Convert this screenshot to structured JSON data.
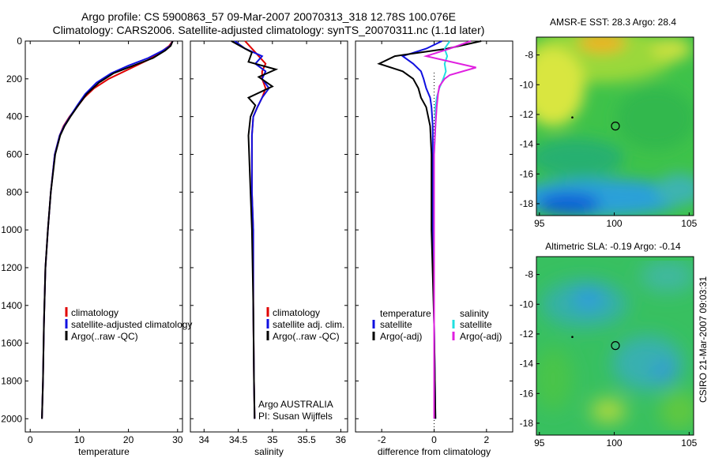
{
  "header": {
    "line1": "Argo profile: CS 5900863_57 09-Mar-2007 20070313_318 12.78S 100.076E",
    "line2": "Climatology: CARS2006. Satellite-adjusted climatology: synTS_20070311.nc (1.1d later)"
  },
  "footer_stamp": "CSIRO 21-Mar-2007 09:03:31",
  "colors": {
    "climatology": "#e00000",
    "satellite": "#1010e0",
    "argo": "#000000",
    "sal_satellite": "#20e0e0",
    "sal_argo": "#e020e0"
  },
  "chart_data": [
    {
      "id": "temperature",
      "type": "line",
      "xlabel": "temperature",
      "ylabel": "",
      "xlim": [
        -1,
        31
      ],
      "ylim": [
        2070,
        0
      ],
      "xticks": [
        0,
        10,
        20,
        30
      ],
      "yticks": [
        0,
        200,
        400,
        600,
        800,
        1000,
        1200,
        1400,
        1600,
        1800,
        2000
      ],
      "legend": [
        "climatology",
        "satellite-adjusted climatology",
        "Argo(..raw -QC)"
      ],
      "series": [
        {
          "name": "climatology",
          "color": "#e00000",
          "x": [
            29,
            28.3,
            27,
            24,
            20,
            16,
            13,
            11,
            9.5,
            8,
            6.8,
            6,
            5,
            4.2,
            3.6,
            3.1,
            2.8,
            2.6,
            2.4
          ],
          "y": [
            0,
            25,
            50,
            100,
            150,
            200,
            250,
            300,
            350,
            400,
            450,
            500,
            600,
            800,
            1000,
            1200,
            1500,
            1800,
            2000
          ]
        },
        {
          "name": "satellite-adjusted climatology",
          "color": "#1010e0",
          "x": [
            29,
            28.5,
            27,
            24,
            20,
            16.5,
            13.5,
            11.2,
            9.6,
            8.1,
            6.9,
            6,
            5,
            4.2,
            3.6,
            3.1,
            2.8,
            2.6,
            2.4
          ],
          "y": [
            0,
            25,
            50,
            90,
            130,
            170,
            220,
            280,
            340,
            400,
            450,
            500,
            600,
            800,
            1000,
            1200,
            1500,
            1800,
            2000
          ]
        },
        {
          "name": "Argo(..raw -QC)",
          "color": "#000000",
          "x": [
            29,
            28.6,
            27.5,
            25,
            21,
            17,
            14,
            11.5,
            9.8,
            8.2,
            7,
            6.1,
            5.1,
            4.2,
            3.6,
            3.1,
            2.8,
            2.6,
            2.4
          ],
          "y": [
            0,
            25,
            50,
            90,
            130,
            170,
            220,
            280,
            340,
            400,
            450,
            500,
            600,
            800,
            1000,
            1200,
            1500,
            1800,
            2000
          ]
        }
      ]
    },
    {
      "id": "salinity",
      "type": "line",
      "xlabel": "salinity",
      "ylabel": "",
      "xlim": [
        33.8,
        36.1
      ],
      "ylim": [
        2070,
        0
      ],
      "xticks": [
        34,
        34.5,
        35,
        35.5,
        36
      ],
      "legend": [
        "climatology",
        "satellite adj. clim.",
        "Argo(..raw -QC)"
      ],
      "annotations": [
        "Argo AUSTRALIA",
        "PI: Susan Wijffels"
      ],
      "series": [
        {
          "name": "climatology",
          "color": "#e00000",
          "x": [
            34.6,
            34.7,
            34.8,
            34.9,
            34.85,
            34.85,
            34.9,
            34.85,
            34.78,
            34.72,
            34.7,
            34.7,
            34.72,
            34.72,
            34.73,
            34.74
          ],
          "y": [
            0,
            40,
            80,
            120,
            160,
            200,
            250,
            300,
            350,
            400,
            500,
            800,
            1000,
            1400,
            1800,
            2000
          ]
        },
        {
          "name": "satellite adj. clim.",
          "color": "#1010e0",
          "x": [
            34.45,
            34.6,
            34.85,
            34.75,
            34.9,
            34.85,
            34.95,
            34.85,
            34.78,
            34.72,
            34.7,
            34.7,
            34.72,
            34.72,
            34.73,
            34.74
          ],
          "y": [
            0,
            40,
            80,
            120,
            160,
            200,
            250,
            300,
            350,
            400,
            500,
            800,
            1000,
            1400,
            1800,
            2000
          ]
        },
        {
          "name": "Argo(..raw -QC)",
          "color": "#000000",
          "x": [
            34.4,
            34.55,
            34.7,
            34.65,
            35.05,
            34.8,
            35,
            34.65,
            34.75,
            34.68,
            34.65,
            34.68,
            34.7,
            34.72,
            34.73,
            34.74
          ],
          "y": [
            0,
            30,
            60,
            110,
            150,
            190,
            240,
            300,
            340,
            400,
            500,
            800,
            1000,
            1400,
            1800,
            2000
          ]
        }
      ]
    },
    {
      "id": "difference",
      "type": "line",
      "xlabel": "difference from climatology",
      "ylabel": "",
      "xlim": [
        -3,
        3
      ],
      "ylim": [
        2070,
        0
      ],
      "xticks": [
        -2,
        0,
        2
      ],
      "legend_groups": [
        {
          "title": "temperature",
          "items": [
            "satellite",
            "Argo(-adj)"
          ]
        },
        {
          "title": "salinity",
          "items": [
            "satellite",
            "Argo(-adj)"
          ]
        }
      ],
      "series": [
        {
          "name": "temperature satellite",
          "color": "#1010e0",
          "x": [
            0.3,
            -0.3,
            -1.2,
            -0.8,
            -0.5,
            -0.4,
            -0.3,
            -0.15,
            -0.1,
            -0.05,
            -0.05,
            -0.05,
            0,
            0.05
          ],
          "y": [
            0,
            40,
            80,
            120,
            160,
            200,
            250,
            300,
            350,
            450,
            600,
            1000,
            1500,
            2000
          ]
        },
        {
          "name": "temperature Argo(-adj)",
          "color": "#000000",
          "x": [
            1.8,
            0.5,
            -1.5,
            -2.1,
            -1.2,
            -0.8,
            -0.6,
            -0.5,
            -0.3,
            -0.15,
            -0.1,
            -0.1,
            0,
            0.05
          ],
          "y": [
            0,
            40,
            80,
            120,
            160,
            200,
            250,
            300,
            350,
            450,
            600,
            1000,
            1500,
            2000
          ]
        },
        {
          "name": "salinity satellite",
          "color": "#20e0e0",
          "x": [
            0.6,
            0.4,
            0.5,
            0.4,
            0.45,
            0.35,
            0.2,
            0.1,
            0.05,
            0.05,
            0,
            0
          ],
          "y": [
            0,
            40,
            80,
            120,
            160,
            200,
            250,
            300,
            350,
            450,
            600,
            2000
          ]
        },
        {
          "name": "salinity Argo(-adj)",
          "color": "#e020e0",
          "x": [
            1.4,
            0.6,
            -0.3,
            1.6,
            0.6,
            0.4,
            0.2,
            0.15,
            0.1,
            0.05,
            0,
            0
          ],
          "y": [
            0,
            40,
            80,
            140,
            180,
            200,
            240,
            280,
            350,
            450,
            600,
            2000
          ]
        }
      ]
    }
  ],
  "maps": [
    {
      "id": "sst",
      "title": "AMSR-E SST: 28.3 Argo: 28.4",
      "xlim": [
        94.8,
        105.3
      ],
      "ylim": [
        -18.8,
        -6.8
      ],
      "xticks": [
        95,
        100,
        105
      ],
      "yticks": [
        -8,
        -10,
        -12,
        -14,
        -16,
        -18
      ],
      "marker": {
        "lon": 100.076,
        "lat": -12.78
      },
      "track": {
        "lon": 97.2,
        "lat": -12.2
      }
    },
    {
      "id": "sla",
      "title": "Altimetric SLA: -0.19 Argo: -0.14",
      "xlim": [
        94.8,
        105.3
      ],
      "ylim": [
        -18.8,
        -6.8
      ],
      "xticks": [
        95,
        100,
        105
      ],
      "yticks": [
        -8,
        -10,
        -12,
        -14,
        -16,
        -18
      ],
      "marker": {
        "lon": 100.076,
        "lat": -12.78
      },
      "track": {
        "lon": 97.2,
        "lat": -12.2
      }
    }
  ]
}
